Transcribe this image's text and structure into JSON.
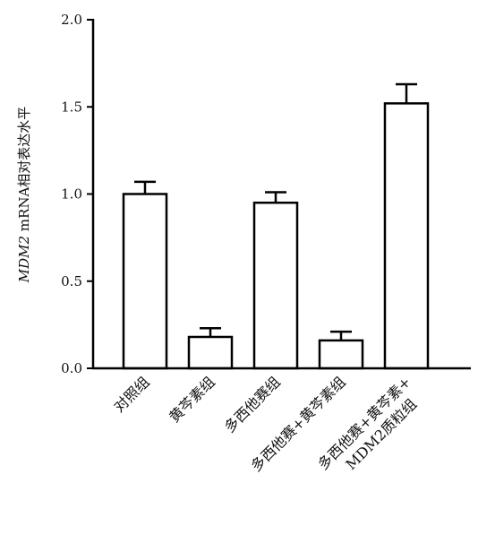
{
  "chart_data": {
    "type": "bar",
    "categories": [
      [
        "对照组"
      ],
      [
        "黄芩素组"
      ],
      [
        "多西他赛组"
      ],
      [
        "多西他赛+黄芩素组"
      ],
      [
        "多西他赛+黄芩素+",
        "MDM2质粒组"
      ]
    ],
    "values": [
      1.0,
      0.18,
      0.95,
      0.16,
      1.52
    ],
    "errors": [
      0.07,
      0.05,
      0.06,
      0.05,
      0.11
    ],
    "ylabel": {
      "italic": "MDM2",
      "rest": " mRNA相对表达水平"
    },
    "ylim": [
      0,
      2.0
    ],
    "yticks": [
      0.0,
      0.5,
      1.0,
      1.5,
      2.0
    ],
    "ytick_labels": [
      "0.0",
      "0.5",
      "1.0",
      "1.5",
      "2.0"
    ],
    "grid": false,
    "bar_fill": "#ffffff",
    "bar_stroke": "#000000"
  }
}
